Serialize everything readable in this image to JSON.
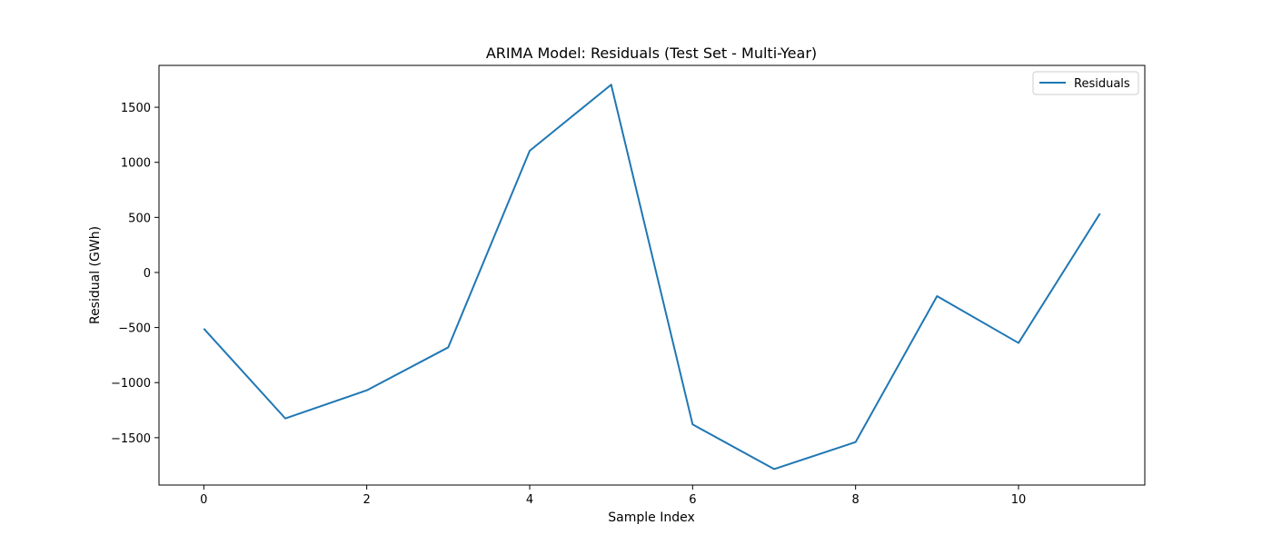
{
  "chart_data": {
    "type": "line",
    "title": "ARIMA Model: Residuals (Test Set - Multi-Year)",
    "xlabel": "Sample Index",
    "ylabel": "Residual (GWh)",
    "x": [
      0,
      1,
      2,
      3,
      4,
      5,
      6,
      7,
      8,
      9,
      10,
      11
    ],
    "series": [
      {
        "name": "Residuals",
        "color": "#1f77b4",
        "values": [
          -510,
          -1325,
          -1070,
          -680,
          1105,
          1705,
          -1380,
          -1785,
          -1540,
          -215,
          -640,
          535
        ]
      }
    ],
    "xlim": [
      -0.55,
      11.55
    ],
    "ylim": [
      -1930,
      1880
    ],
    "xticks": [
      0,
      2,
      4,
      6,
      8,
      10
    ],
    "xtick_labels": [
      "0",
      "2",
      "4",
      "6",
      "8",
      "10"
    ],
    "yticks": [
      -1500,
      -1000,
      -500,
      0,
      500,
      1000,
      1500
    ],
    "ytick_labels": [
      "−1500",
      "−1000",
      "−500",
      "0",
      "500",
      "1000",
      "1500"
    ],
    "grid": false,
    "legend_position": "top-right"
  }
}
